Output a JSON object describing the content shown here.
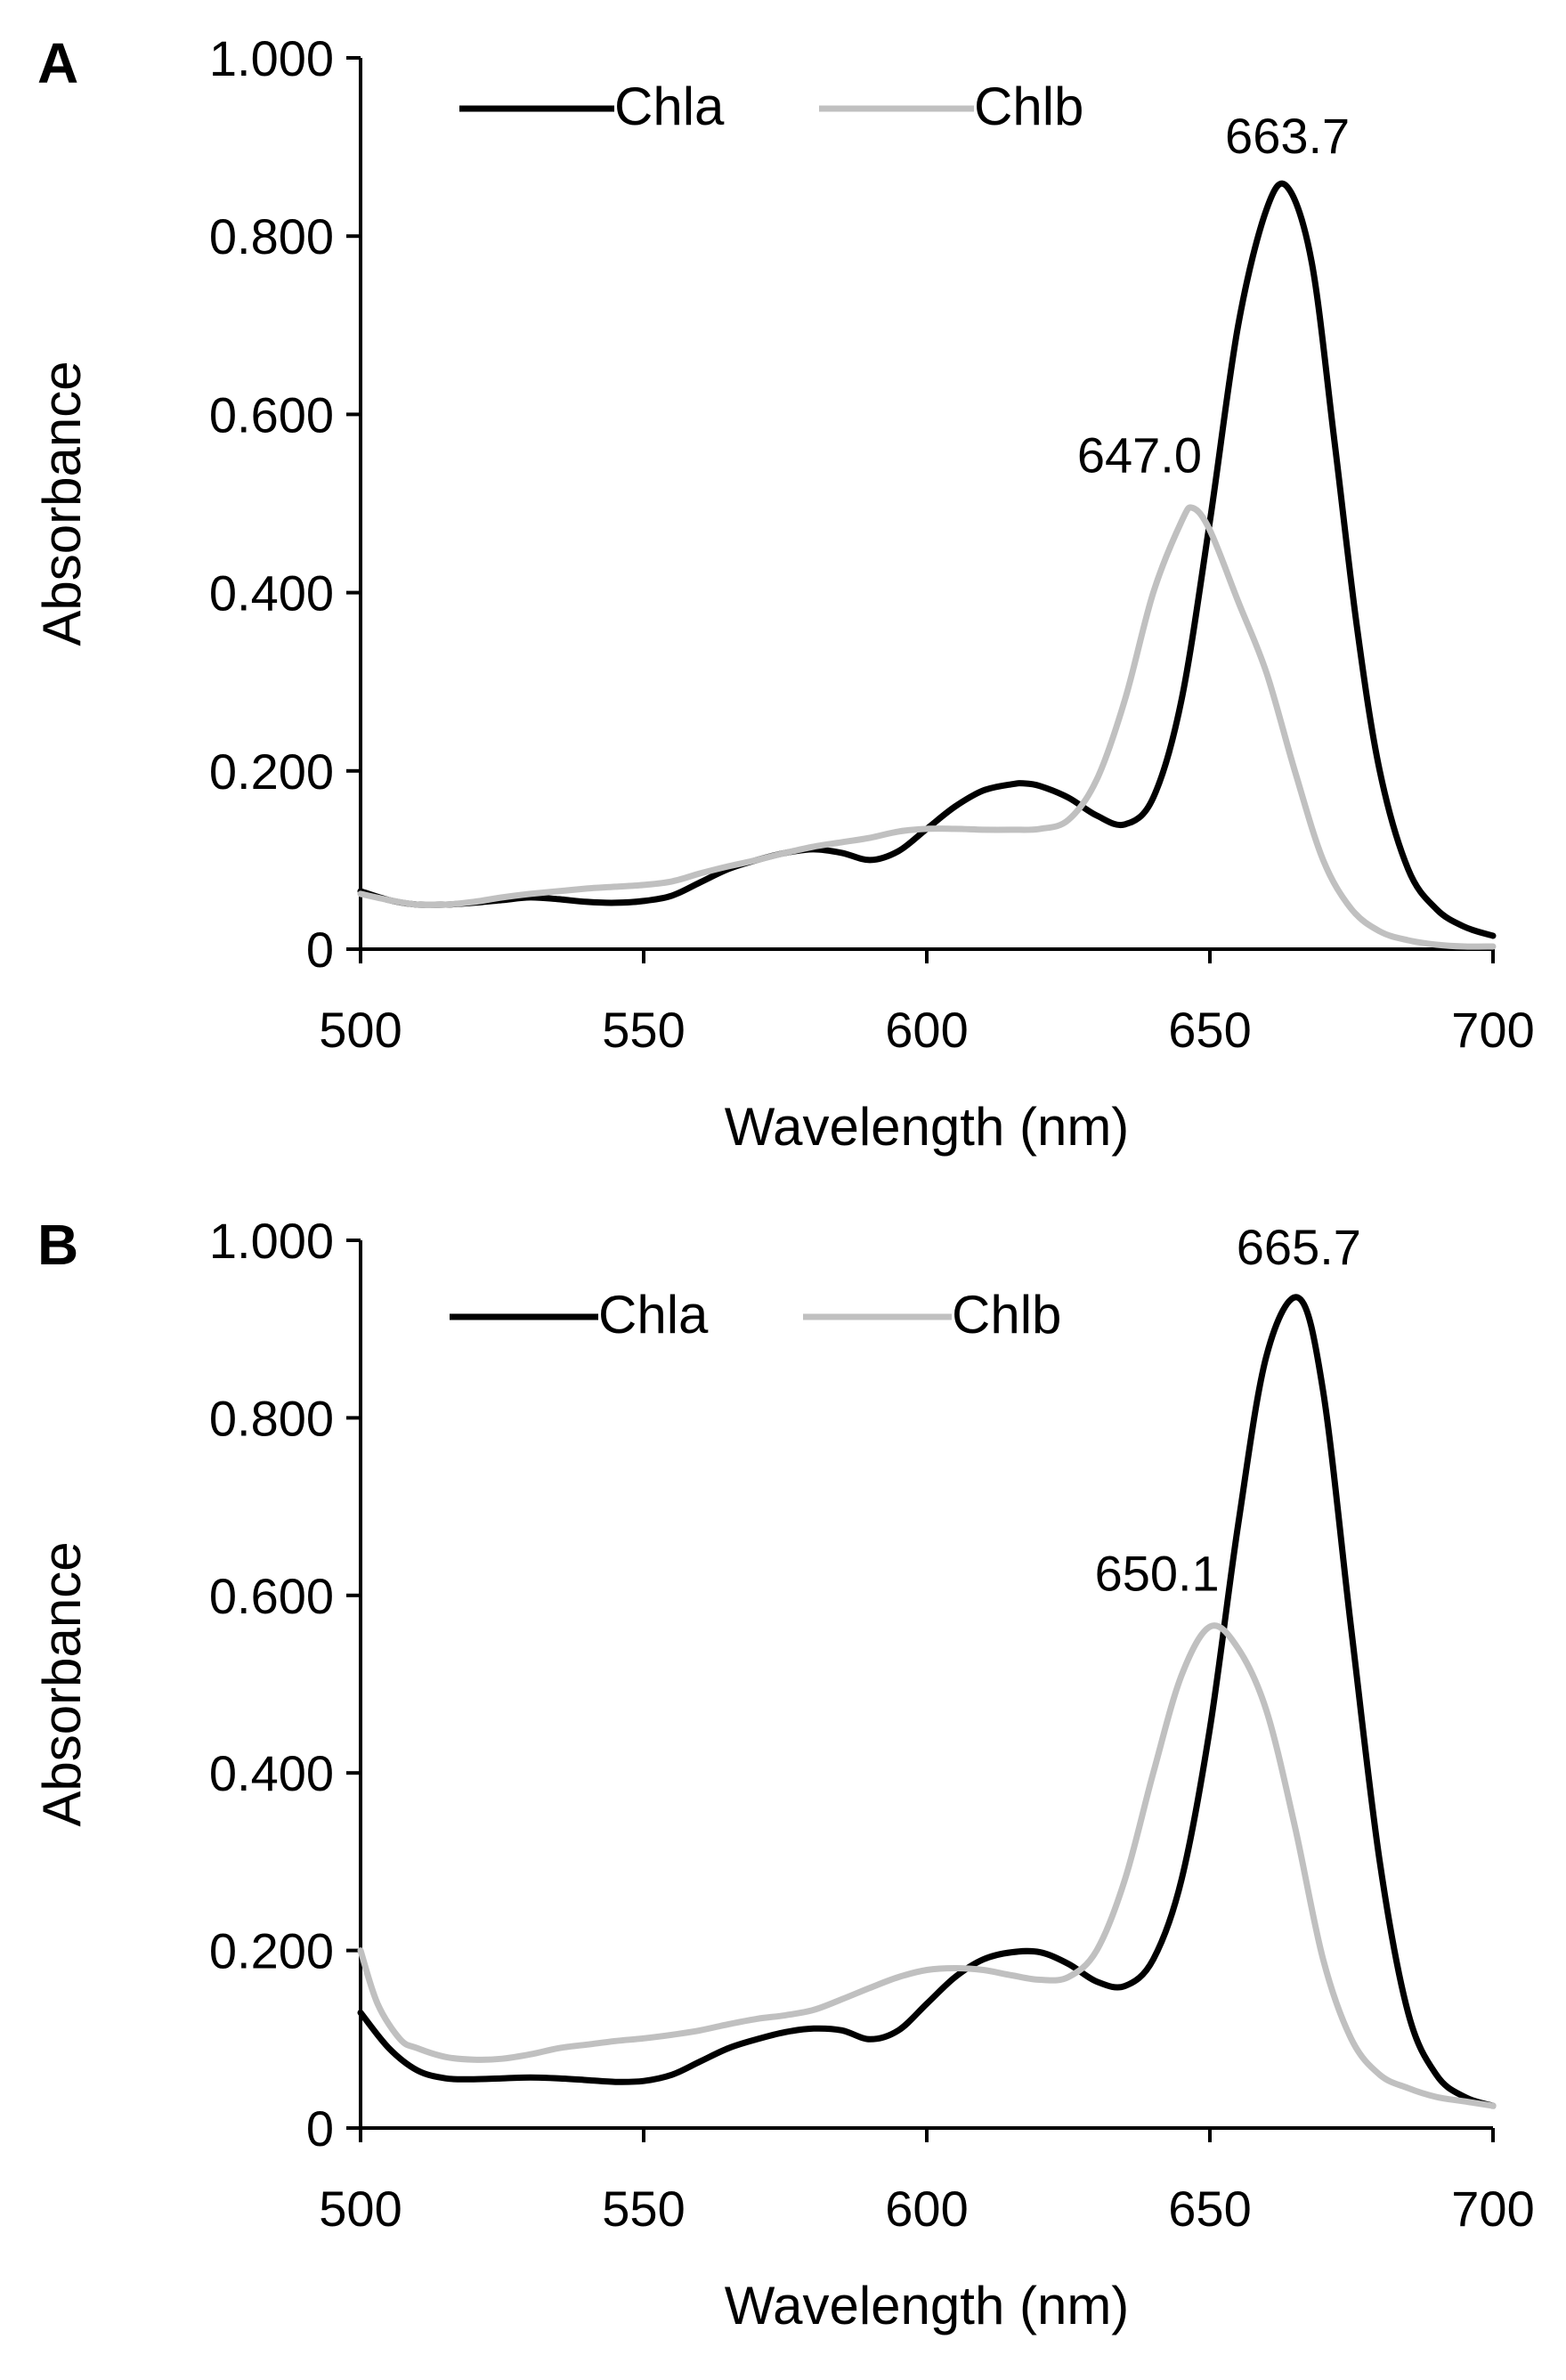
{
  "colors": {
    "chla": "#000000",
    "chlb": "#c0c0c0",
    "axis": "#000000",
    "background": "#ffffff"
  },
  "chart_data": [
    {
      "panel": "A",
      "type": "line",
      "xlabel": "Wavelength (nm)",
      "ylabel": "Absorbance",
      "xlim": [
        500,
        700
      ],
      "ylim": [
        0,
        1.0
      ],
      "xticks": [
        "500",
        "550",
        "600",
        "650",
        "700"
      ],
      "yticks": [
        "0",
        "0.200",
        "0.400",
        "0.600",
        "0.800",
        "1.000"
      ],
      "legend_position": "top",
      "grid": false,
      "series": [
        {
          "name": "Chla",
          "color": "#000000",
          "x": [
            500,
            505,
            510,
            515,
            520,
            525,
            530,
            535,
            540,
            545,
            550,
            555,
            560,
            565,
            570,
            575,
            580,
            585,
            590,
            595,
            600,
            605,
            610,
            615,
            617,
            620,
            625,
            630,
            635,
            640,
            645,
            650,
            655,
            660,
            663.7,
            668,
            672,
            676,
            680,
            685,
            690,
            695,
            700
          ],
          "y": [
            0.065,
            0.055,
            0.05,
            0.05,
            0.052,
            0.055,
            0.058,
            0.056,
            0.053,
            0.052,
            0.054,
            0.06,
            0.075,
            0.09,
            0.1,
            0.108,
            0.112,
            0.108,
            0.1,
            0.11,
            0.135,
            0.16,
            0.178,
            0.185,
            0.186,
            0.183,
            0.17,
            0.15,
            0.14,
            0.17,
            0.28,
            0.48,
            0.7,
            0.83,
            0.855,
            0.77,
            0.57,
            0.36,
            0.2,
            0.09,
            0.045,
            0.025,
            0.015
          ]
        },
        {
          "name": "Chlb",
          "color": "#c0c0c0",
          "x": [
            500,
            505,
            510,
            515,
            520,
            525,
            530,
            535,
            540,
            545,
            550,
            555,
            560,
            565,
            570,
            575,
            580,
            585,
            590,
            595,
            600,
            605,
            610,
            615,
            620,
            625,
            630,
            635,
            640,
            645,
            647,
            650,
            655,
            660,
            665,
            670,
            675,
            680,
            685,
            690,
            695,
            700
          ],
          "y": [
            0.062,
            0.055,
            0.05,
            0.05,
            0.053,
            0.058,
            0.062,
            0.065,
            0.068,
            0.07,
            0.072,
            0.076,
            0.085,
            0.093,
            0.1,
            0.108,
            0.115,
            0.12,
            0.125,
            0.132,
            0.135,
            0.135,
            0.134,
            0.134,
            0.135,
            0.145,
            0.19,
            0.28,
            0.4,
            0.48,
            0.495,
            0.47,
            0.39,
            0.31,
            0.2,
            0.1,
            0.045,
            0.02,
            0.01,
            0.005,
            0.003,
            0.003
          ]
        }
      ],
      "annotations": [
        {
          "text": "663.7",
          "series": "Chla",
          "x": 663.7,
          "y": 0.855
        },
        {
          "text": "647.0",
          "series": "Chlb",
          "x": 647.0,
          "y": 0.495
        }
      ]
    },
    {
      "panel": "B",
      "type": "line",
      "xlabel": "Wavelength (nm)",
      "ylabel": "Absorbance",
      "xlim": [
        500,
        700
      ],
      "ylim": [
        0,
        1.0
      ],
      "xticks": [
        "500",
        "550",
        "600",
        "650",
        "700"
      ],
      "yticks": [
        "0",
        "0.200",
        "0.400",
        "0.600",
        "0.800",
        "1.000"
      ],
      "legend_position": "top",
      "grid": false,
      "series": [
        {
          "name": "Chla",
          "color": "#000000",
          "x": [
            500,
            505,
            510,
            515,
            520,
            525,
            530,
            535,
            540,
            545,
            550,
            555,
            560,
            565,
            570,
            575,
            580,
            585,
            590,
            595,
            600,
            605,
            610,
            615,
            620,
            625,
            630,
            635,
            640,
            645,
            650,
            655,
            660,
            665.7,
            670,
            675,
            680,
            685,
            690,
            695,
            700
          ],
          "y": [
            0.13,
            0.09,
            0.065,
            0.056,
            0.055,
            0.056,
            0.057,
            0.056,
            0.054,
            0.052,
            0.053,
            0.06,
            0.075,
            0.09,
            0.1,
            0.108,
            0.112,
            0.11,
            0.1,
            0.11,
            0.14,
            0.17,
            0.19,
            0.198,
            0.198,
            0.185,
            0.165,
            0.16,
            0.19,
            0.28,
            0.45,
            0.68,
            0.87,
            0.935,
            0.83,
            0.56,
            0.3,
            0.13,
            0.06,
            0.035,
            0.025
          ]
        },
        {
          "name": "Chlb",
          "color": "#c0c0c0",
          "x": [
            500,
            503,
            507,
            510,
            515,
            520,
            525,
            530,
            535,
            540,
            545,
            550,
            555,
            560,
            565,
            570,
            575,
            580,
            585,
            590,
            595,
            600,
            605,
            610,
            615,
            620,
            625,
            630,
            635,
            640,
            645,
            650.1,
            655,
            660,
            665,
            670,
            675,
            680,
            685,
            690,
            695,
            700
          ],
          "y": [
            0.2,
            0.14,
            0.1,
            0.09,
            0.08,
            0.077,
            0.078,
            0.083,
            0.09,
            0.094,
            0.098,
            0.101,
            0.105,
            0.11,
            0.117,
            0.123,
            0.127,
            0.133,
            0.145,
            0.158,
            0.17,
            0.178,
            0.18,
            0.178,
            0.172,
            0.167,
            0.17,
            0.2,
            0.28,
            0.4,
            0.51,
            0.565,
            0.54,
            0.47,
            0.34,
            0.19,
            0.1,
            0.06,
            0.045,
            0.035,
            0.03,
            0.025
          ]
        }
      ],
      "annotations": [
        {
          "text": "665.7",
          "series": "Chla",
          "x": 665.7,
          "y": 0.935
        },
        {
          "text": "650.1",
          "series": "Chlb",
          "x": 650.1,
          "y": 0.565
        }
      ]
    }
  ]
}
